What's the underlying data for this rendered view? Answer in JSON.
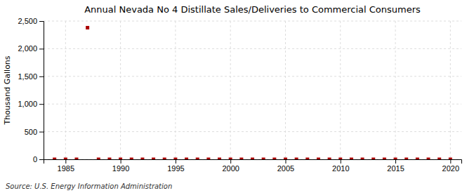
{
  "chart_data": {
    "type": "scatter",
    "title": "Annual Nevada No 4 Distillate Sales/Deliveries to Commercial Consumers",
    "ylabel": "Thousand Gallons",
    "annotation": "Source: U.S. Energy Information Administration",
    "x": [
      1984,
      1985,
      1986,
      1987,
      1988,
      1989,
      1990,
      1991,
      1992,
      1993,
      1994,
      1995,
      1996,
      1997,
      1998,
      1999,
      2000,
      2001,
      2002,
      2003,
      2004,
      2005,
      2006,
      2007,
      2008,
      2009,
      2010,
      2011,
      2012,
      2013,
      2014,
      2015,
      2016,
      2017,
      2018,
      2019,
      2020
    ],
    "values": [
      0,
      0,
      0,
      2380,
      0,
      0,
      0,
      0,
      0,
      0,
      0,
      0,
      0,
      0,
      0,
      0,
      0,
      0,
      0,
      0,
      0,
      0,
      0,
      0,
      0,
      0,
      0,
      0,
      0,
      0,
      0,
      0,
      0,
      0,
      0,
      0,
      0
    ],
    "color": "#aa0000",
    "marker": "square",
    "xlim": [
      1983,
      2021
    ],
    "xticks": [
      1985,
      1990,
      1995,
      2000,
      2005,
      2010,
      2015,
      2020
    ],
    "ylim": [
      0,
      2500
    ],
    "yticks": [
      0,
      500,
      {
        "value": 1000,
        "label": "1,000"
      },
      {
        "value": 1500,
        "label": "1,500"
      },
      {
        "value": 2000,
        "label": "2,000"
      },
      {
        "value": 2500,
        "label": "2,500"
      }
    ],
    "grid": true
  }
}
